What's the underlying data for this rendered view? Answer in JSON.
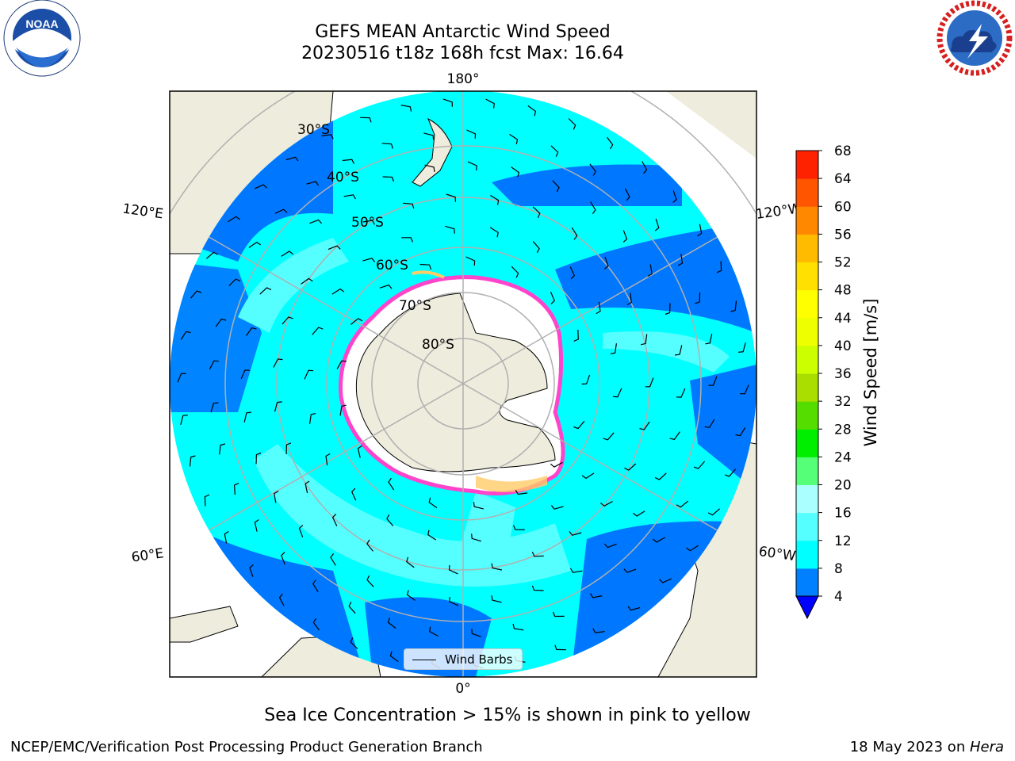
{
  "header": {
    "title_line1": "GEFS MEAN Antarctic Wind Speed",
    "title_line2": "20230516 t18z 168h fcst   Max: 16.64"
  },
  "logos": {
    "left": {
      "name": "noaa-logo",
      "text": "NOAA",
      "ring_text": "NATIONAL OCEANIC AND ATMOSPHERIC ADMINISTRATION · U.S. DEPARTMENT OF COMMERCE"
    },
    "right": {
      "name": "nws-logo",
      "ring_text": "NATIONAL WEATHER SERVICE"
    }
  },
  "map": {
    "longitude_labels": {
      "top": "180°",
      "bottom": "0°",
      "upper_left": "120°E",
      "upper_right": "120°W",
      "lower_left": "60°E",
      "lower_right": "60°W"
    },
    "latitude_labels": [
      "30°S",
      "40°S",
      "50°S",
      "60°S",
      "70°S",
      "80°S"
    ],
    "legend_label": "Wind Barbs",
    "colors": {
      "land": "#eeecdc",
      "ocean_4_8": "#0077ff",
      "ocean_8_12": "#00ffff",
      "ocean_12_16": "#55ffff",
      "sea_ice": "#ffffff",
      "ice_edge": "#ff44cc"
    }
  },
  "colorbar": {
    "label": "Wind Speed [m/s]",
    "ticks": [
      "68",
      "64",
      "60",
      "56",
      "52",
      "48",
      "44",
      "40",
      "36",
      "32",
      "28",
      "24",
      "20",
      "16",
      "12",
      "8",
      "4"
    ],
    "colors": [
      "#0000ff",
      "#0080ff",
      "#00ffff",
      "#55ffff",
      "#aaffff",
      "#55ff77",
      "#00ee00",
      "#55dd00",
      "#aadd00",
      "#ccff00",
      "#eeff00",
      "#ffff00",
      "#ffe000",
      "#ffbb00",
      "#ff8800",
      "#ff5500",
      "#ff2200",
      "#ff0000"
    ]
  },
  "footer": {
    "sea_ice_note": "Sea Ice Concentration > 15% is shown in pink to yellow",
    "left": "NCEP/EMC/Verification Post Processing Product Generation Branch",
    "right_date": "18 May 2023 on ",
    "right_machine": "Hera"
  }
}
